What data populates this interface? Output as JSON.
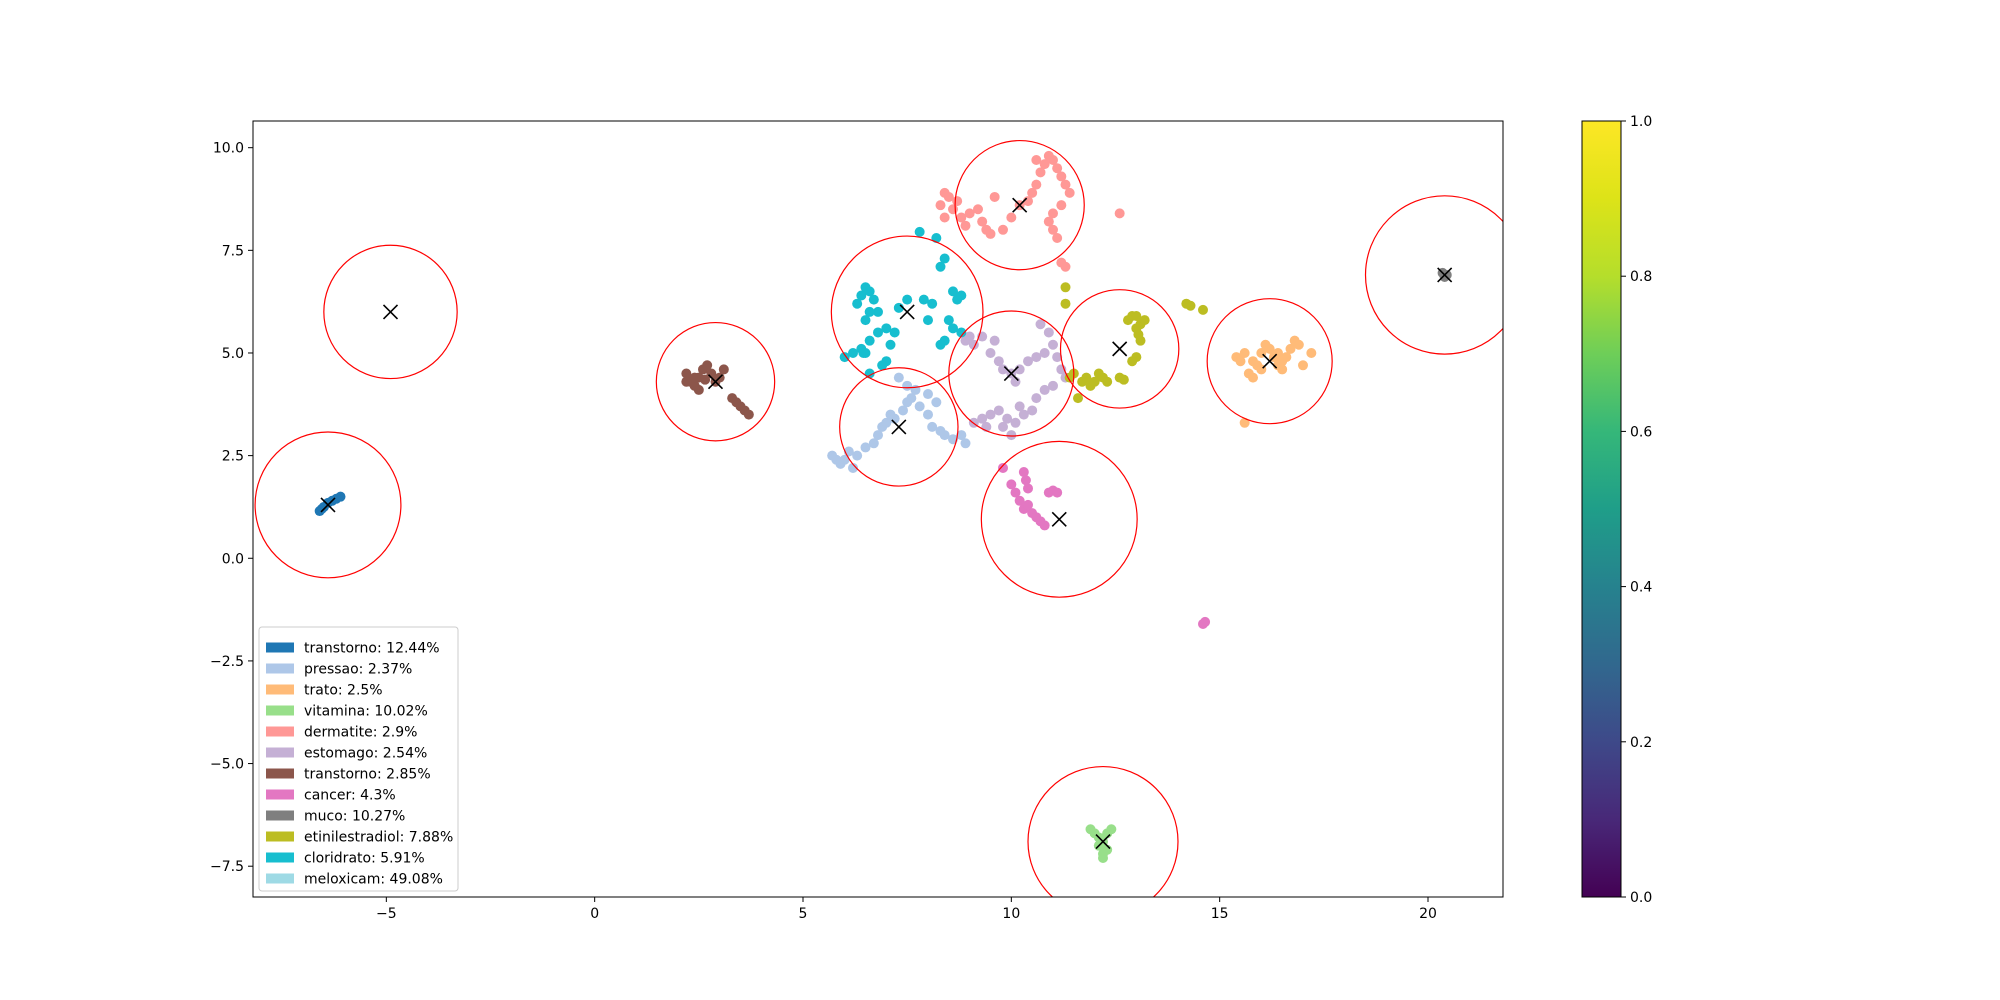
{
  "chart_data": {
    "type": "scatter",
    "title": "",
    "xlabel": "",
    "ylabel": "",
    "xlim": [
      -8.2,
      21.8
    ],
    "ylim": [
      -8.25,
      10.65
    ],
    "x_ticks": [
      -5,
      0,
      5,
      10,
      15,
      20
    ],
    "y_ticks": [
      -7.5,
      -5.0,
      -2.5,
      0.0,
      2.5,
      5.0,
      7.5,
      10.0
    ],
    "x_tick_labels": [
      "−5",
      "0",
      "5",
      "10",
      "15",
      "20"
    ],
    "y_tick_labels": [
      "−7.5",
      "−5.0",
      "−2.5",
      "0.0",
      "2.5",
      "5.0",
      "7.5",
      "10.0"
    ],
    "grid": false,
    "legend_position": "lower-left",
    "colorbar": {
      "colormap": "viridis",
      "range": [
        0.0,
        1.0
      ],
      "ticks": [
        0.0,
        0.2,
        0.4,
        0.6,
        0.8,
        1.0
      ],
      "tick_labels": [
        "0.0",
        "0.2",
        "0.4",
        "0.6",
        "0.8",
        "1.0"
      ]
    },
    "series": [
      {
        "name": "transtorno: 12.44%",
        "color": "#1f77b4",
        "points": [
          [
            -6.6,
            1.15
          ],
          [
            -6.5,
            1.25
          ],
          [
            -6.4,
            1.35
          ],
          [
            -6.3,
            1.4
          ],
          [
            -6.2,
            1.45
          ],
          [
            -6.1,
            1.5
          ],
          [
            -6.55,
            1.2
          ]
        ]
      },
      {
        "name": "pressao: 2.37%",
        "color": "#aec7e8",
        "points": [
          [
            5.7,
            2.5
          ],
          [
            5.8,
            2.4
          ],
          [
            5.9,
            2.3
          ],
          [
            6.1,
            2.6
          ],
          [
            6.3,
            2.5
          ],
          [
            6.5,
            2.7
          ],
          [
            6.7,
            2.8
          ],
          [
            6.8,
            3.0
          ],
          [
            6.9,
            3.2
          ],
          [
            7.0,
            3.3
          ],
          [
            7.1,
            3.5
          ],
          [
            7.2,
            3.4
          ],
          [
            7.4,
            3.6
          ],
          [
            7.5,
            3.8
          ],
          [
            7.6,
            3.9
          ],
          [
            7.8,
            3.7
          ],
          [
            8.0,
            3.5
          ],
          [
            8.1,
            3.2
          ],
          [
            8.3,
            3.1
          ],
          [
            8.4,
            3.0
          ],
          [
            8.6,
            2.9
          ],
          [
            8.8,
            3.0
          ],
          [
            8.9,
            2.8
          ],
          [
            7.7,
            4.1
          ],
          [
            8.0,
            4.0
          ],
          [
            8.2,
            3.8
          ],
          [
            7.3,
            4.4
          ],
          [
            7.5,
            4.2
          ],
          [
            6.0,
            2.4
          ],
          [
            6.2,
            2.2
          ]
        ]
      },
      {
        "name": "trato: 2.5%",
        "color": "#ffbb78",
        "points": [
          [
            15.4,
            4.9
          ],
          [
            15.5,
            4.8
          ],
          [
            15.6,
            5.0
          ],
          [
            15.7,
            4.5
          ],
          [
            15.8,
            4.4
          ],
          [
            15.9,
            4.7
          ],
          [
            16.0,
            5.0
          ],
          [
            16.1,
            5.2
          ],
          [
            16.2,
            5.1
          ],
          [
            16.3,
            4.9
          ],
          [
            16.4,
            4.7
          ],
          [
            16.5,
            4.6
          ],
          [
            16.6,
            4.9
          ],
          [
            16.7,
            5.1
          ],
          [
            16.8,
            5.3
          ],
          [
            16.9,
            5.2
          ],
          [
            17.0,
            4.7
          ],
          [
            17.2,
            5.0
          ],
          [
            15.8,
            4.8
          ],
          [
            16.0,
            4.6
          ],
          [
            15.6,
            3.3
          ],
          [
            16.5,
            4.8
          ],
          [
            16.4,
            5.0
          ]
        ]
      },
      {
        "name": "vitamina: 10.02%",
        "color": "#98df8a",
        "points": [
          [
            11.9,
            -6.6
          ],
          [
            12.0,
            -6.7
          ],
          [
            12.1,
            -6.8
          ],
          [
            12.2,
            -6.9
          ],
          [
            12.3,
            -6.7
          ],
          [
            12.4,
            -6.6
          ],
          [
            12.1,
            -7.0
          ],
          [
            12.2,
            -7.2
          ],
          [
            12.3,
            -7.1
          ],
          [
            12.2,
            -7.3
          ]
        ]
      },
      {
        "name": "dermatite: 2.9%",
        "color": "#ff9896",
        "points": [
          [
            8.3,
            8.6
          ],
          [
            8.4,
            8.9
          ],
          [
            8.5,
            8.8
          ],
          [
            8.6,
            8.5
          ],
          [
            8.7,
            8.7
          ],
          [
            8.8,
            8.3
          ],
          [
            8.9,
            8.1
          ],
          [
            9.0,
            8.4
          ],
          [
            9.2,
            8.5
          ],
          [
            9.3,
            8.2
          ],
          [
            9.4,
            8.0
          ],
          [
            9.5,
            7.9
          ],
          [
            9.8,
            8.0
          ],
          [
            10.0,
            8.3
          ],
          [
            10.2,
            8.6
          ],
          [
            10.4,
            8.7
          ],
          [
            10.5,
            8.9
          ],
          [
            10.6,
            9.1
          ],
          [
            10.7,
            9.4
          ],
          [
            10.8,
            9.6
          ],
          [
            10.9,
            9.8
          ],
          [
            11.0,
            9.7
          ],
          [
            11.1,
            9.5
          ],
          [
            11.2,
            9.3
          ],
          [
            11.3,
            9.1
          ],
          [
            11.4,
            8.9
          ],
          [
            11.2,
            8.6
          ],
          [
            11.0,
            8.4
          ],
          [
            10.9,
            8.2
          ],
          [
            11.0,
            8.0
          ],
          [
            11.1,
            7.8
          ],
          [
            11.2,
            7.2
          ],
          [
            11.3,
            7.1
          ],
          [
            12.6,
            8.4
          ],
          [
            9.6,
            8.8
          ],
          [
            10.6,
            9.7
          ],
          [
            8.4,
            8.3
          ]
        ]
      },
      {
        "name": "estomago: 2.54%",
        "color": "#c5b0d5",
        "points": [
          [
            8.9,
            5.3
          ],
          [
            9.0,
            5.4
          ],
          [
            9.1,
            5.2
          ],
          [
            9.3,
            5.4
          ],
          [
            9.5,
            5.0
          ],
          [
            9.7,
            4.8
          ],
          [
            9.8,
            4.6
          ],
          [
            10.0,
            4.5
          ],
          [
            10.1,
            4.3
          ],
          [
            10.2,
            4.6
          ],
          [
            10.4,
            4.8
          ],
          [
            10.6,
            4.9
          ],
          [
            10.8,
            5.0
          ],
          [
            11.0,
            5.2
          ],
          [
            11.1,
            4.9
          ],
          [
            11.2,
            4.6
          ],
          [
            11.3,
            4.4
          ],
          [
            11.0,
            4.2
          ],
          [
            10.8,
            4.1
          ],
          [
            10.6,
            3.9
          ],
          [
            10.5,
            3.6
          ],
          [
            10.3,
            3.5
          ],
          [
            10.1,
            3.3
          ],
          [
            9.9,
            3.4
          ],
          [
            9.7,
            3.6
          ],
          [
            9.5,
            3.5
          ],
          [
            9.3,
            3.4
          ],
          [
            9.1,
            3.3
          ],
          [
            10.0,
            3.0
          ],
          [
            9.8,
            3.2
          ],
          [
            10.9,
            5.5
          ],
          [
            10.7,
            5.7
          ],
          [
            9.6,
            5.3
          ],
          [
            10.2,
            3.7
          ],
          [
            9.4,
            3.2
          ]
        ]
      },
      {
        "name": "transtorno: 2.85%",
        "color": "#8c564b",
        "points": [
          [
            2.2,
            4.5
          ],
          [
            2.3,
            4.3
          ],
          [
            2.4,
            4.2
          ],
          [
            2.5,
            4.4
          ],
          [
            2.6,
            4.6
          ],
          [
            2.7,
            4.7
          ],
          [
            2.8,
            4.5
          ],
          [
            2.9,
            4.3
          ],
          [
            3.0,
            4.4
          ],
          [
            3.1,
            4.6
          ],
          [
            2.2,
            4.3
          ],
          [
            2.4,
            4.4
          ],
          [
            3.3,
            3.9
          ],
          [
            3.4,
            3.8
          ],
          [
            3.5,
            3.7
          ],
          [
            3.6,
            3.6
          ],
          [
            3.7,
            3.5
          ],
          [
            2.5,
            4.1
          ],
          [
            2.65,
            4.35
          ]
        ]
      },
      {
        "name": "cancer: 4.3%",
        "color": "#e377c2",
        "points": [
          [
            9.8,
            2.2
          ],
          [
            10.0,
            1.8
          ],
          [
            10.1,
            1.6
          ],
          [
            10.2,
            1.4
          ],
          [
            10.3,
            1.2
          ],
          [
            10.4,
            1.7
          ],
          [
            10.5,
            1.1
          ],
          [
            10.6,
            1.0
          ],
          [
            10.7,
            0.9
          ],
          [
            10.8,
            0.8
          ],
          [
            10.9,
            1.6
          ],
          [
            11.0,
            1.65
          ],
          [
            11.1,
            1.6
          ],
          [
            10.3,
            2.1
          ],
          [
            10.35,
            1.9
          ],
          [
            10.4,
            1.3
          ],
          [
            14.6,
            -1.6
          ],
          [
            14.65,
            -1.55
          ]
        ]
      },
      {
        "name": "muco: 10.27%",
        "color": "#7f7f7f",
        "points": [
          [
            20.35,
            6.95
          ],
          [
            20.45,
            6.9
          ],
          [
            20.4,
            6.85
          ]
        ]
      },
      {
        "name": "etinilestradiol: 7.88%",
        "color": "#bcbd22",
        "points": [
          [
            11.3,
            6.6
          ],
          [
            11.3,
            6.2
          ],
          [
            11.4,
            4.4
          ],
          [
            11.5,
            4.5
          ],
          [
            11.6,
            3.9
          ],
          [
            11.7,
            4.3
          ],
          [
            11.8,
            4.4
          ],
          [
            11.9,
            4.2
          ],
          [
            12.0,
            4.3
          ],
          [
            12.1,
            4.5
          ],
          [
            12.2,
            4.4
          ],
          [
            12.3,
            4.3
          ],
          [
            12.6,
            4.4
          ],
          [
            12.7,
            4.35
          ],
          [
            12.8,
            5.8
          ],
          [
            12.9,
            5.9
          ],
          [
            13.0,
            5.9
          ],
          [
            13.1,
            5.7
          ],
          [
            13.2,
            5.8
          ],
          [
            13.0,
            5.6
          ],
          [
            13.1,
            5.3
          ],
          [
            13.0,
            4.9
          ],
          [
            12.9,
            4.8
          ],
          [
            14.2,
            6.2
          ],
          [
            14.3,
            6.15
          ],
          [
            14.6,
            6.05
          ],
          [
            13.05,
            5.45
          ]
        ]
      },
      {
        "name": "cloridrato: 5.91%",
        "color": "#17becf",
        "points": [
          [
            6.0,
            4.9
          ],
          [
            6.2,
            5.0
          ],
          [
            6.4,
            5.1
          ],
          [
            6.6,
            5.3
          ],
          [
            6.8,
            5.5
          ],
          [
            7.0,
            5.6
          ],
          [
            7.1,
            5.2
          ],
          [
            7.0,
            4.8
          ],
          [
            6.9,
            4.7
          ],
          [
            6.6,
            4.5
          ],
          [
            6.5,
            5.0
          ],
          [
            6.3,
            6.2
          ],
          [
            6.4,
            6.4
          ],
          [
            6.5,
            6.6
          ],
          [
            6.6,
            6.5
          ],
          [
            6.7,
            6.3
          ],
          [
            6.8,
            6.0
          ],
          [
            6.5,
            5.8
          ],
          [
            6.6,
            6.0
          ],
          [
            7.9,
            6.3
          ],
          [
            8.1,
            6.2
          ],
          [
            8.3,
            7.1
          ],
          [
            8.4,
            7.3
          ],
          [
            8.6,
            6.5
          ],
          [
            8.8,
            6.4
          ],
          [
            8.7,
            6.3
          ],
          [
            8.5,
            5.8
          ],
          [
            8.6,
            5.6
          ],
          [
            8.8,
            5.5
          ],
          [
            8.4,
            5.3
          ],
          [
            8.3,
            5.2
          ],
          [
            7.8,
            7.95
          ],
          [
            8.2,
            7.8
          ],
          [
            7.5,
            6.3
          ],
          [
            7.3,
            6.1
          ],
          [
            7.2,
            5.5
          ],
          [
            8.0,
            5.8
          ],
          [
            6.45,
            5.0
          ]
        ]
      }
    ],
    "centroids": [
      {
        "x": -6.4,
        "y": 1.3,
        "r": 1.75
      },
      {
        "x": -4.9,
        "y": 6.0,
        "r": 1.6
      },
      {
        "x": 2.9,
        "y": 4.3,
        "r": 1.42
      },
      {
        "x": 7.5,
        "y": 6.0,
        "r": 1.82
      },
      {
        "x": 7.3,
        "y": 3.2,
        "r": 1.42
      },
      {
        "x": 10.0,
        "y": 4.5,
        "r": 1.5
      },
      {
        "x": 10.2,
        "y": 8.6,
        "r": 1.55
      },
      {
        "x": 12.6,
        "y": 5.1,
        "r": 1.42
      },
      {
        "x": 11.15,
        "y": 0.95,
        "r": 1.87
      },
      {
        "x": 16.2,
        "y": 4.8,
        "r": 1.5
      },
      {
        "x": 20.4,
        "y": 6.9,
        "r": 1.9
      },
      {
        "x": 12.2,
        "y": -6.9,
        "r": 1.8
      }
    ],
    "legend_entries": [
      {
        "label": "transtorno: 12.44%",
        "color": "#1f77b4"
      },
      {
        "label": "pressao: 2.37%",
        "color": "#aec7e8"
      },
      {
        "label": "trato: 2.5%",
        "color": "#ffbb78"
      },
      {
        "label": "vitamina: 10.02%",
        "color": "#98df8a"
      },
      {
        "label": "dermatite: 2.9%",
        "color": "#ff9896"
      },
      {
        "label": "estomago: 2.54%",
        "color": "#c5b0d5"
      },
      {
        "label": "transtorno: 2.85%",
        "color": "#8c564b"
      },
      {
        "label": "cancer: 4.3%",
        "color": "#e377c2"
      },
      {
        "label": "muco: 10.27%",
        "color": "#7f7f7f"
      },
      {
        "label": "etinilestradiol: 7.88%",
        "color": "#bcbd22"
      },
      {
        "label": "cloridrato: 5.91%",
        "color": "#17becf"
      },
      {
        "label": "meloxicam: 49.08%",
        "color": "#9edae5"
      }
    ],
    "circle_color": "#ff0000",
    "marker_color": "#000000"
  }
}
